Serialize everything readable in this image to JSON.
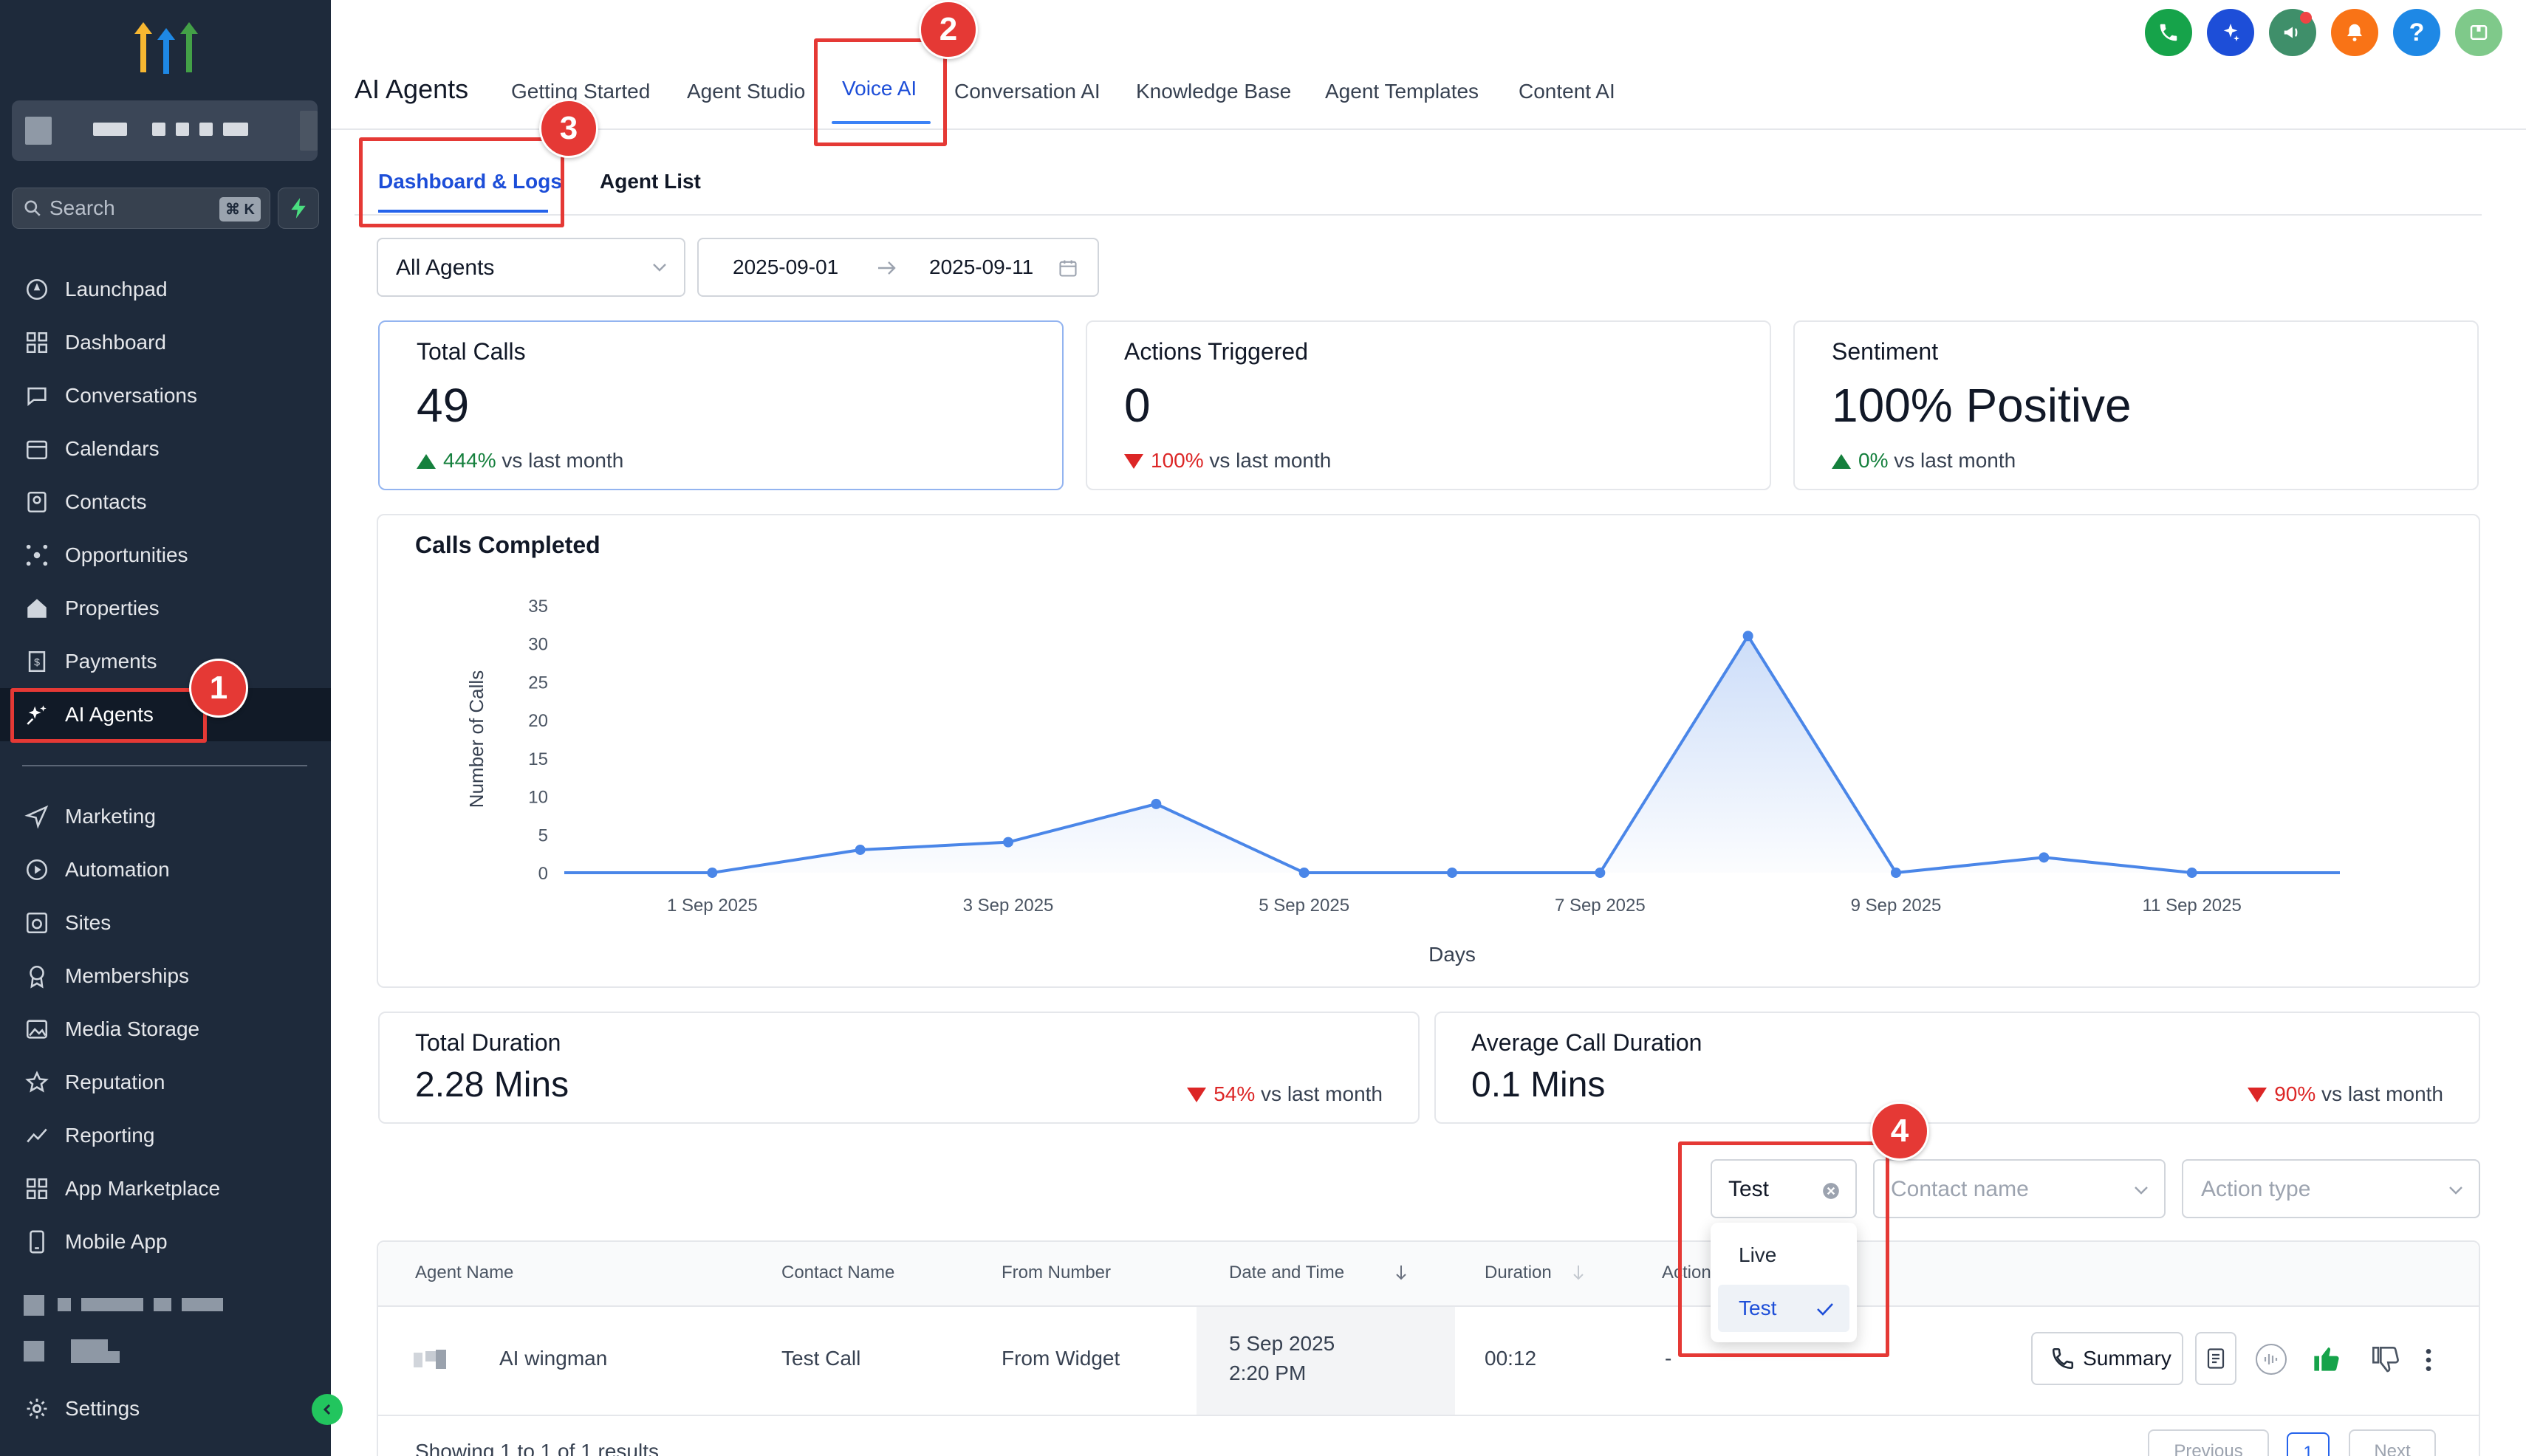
{
  "sidebar": {
    "search_placeholder": "Search",
    "search_shortcut": "⌘ K",
    "items_top": [
      {
        "label": "Launchpad",
        "icon": "rocket-icon"
      },
      {
        "label": "Dashboard",
        "icon": "grid-icon"
      },
      {
        "label": "Conversations",
        "icon": "chat-icon"
      },
      {
        "label": "Calendars",
        "icon": "calendar-icon"
      },
      {
        "label": "Contacts",
        "icon": "contacts-icon"
      },
      {
        "label": "Opportunities",
        "icon": "opportunities-icon"
      },
      {
        "label": "Properties",
        "icon": "home-icon"
      },
      {
        "label": "Payments",
        "icon": "receipt-icon"
      },
      {
        "label": "AI Agents",
        "icon": "sparkle-icon"
      }
    ],
    "items_bottom": [
      {
        "label": "Marketing",
        "icon": "send-icon"
      },
      {
        "label": "Automation",
        "icon": "automation-icon"
      },
      {
        "label": "Sites",
        "icon": "sites-icon"
      },
      {
        "label": "Memberships",
        "icon": "award-icon"
      },
      {
        "label": "Media Storage",
        "icon": "image-icon"
      },
      {
        "label": "Reputation",
        "icon": "star-icon"
      },
      {
        "label": "Reporting",
        "icon": "trend-icon"
      },
      {
        "label": "App Marketplace",
        "icon": "apps-icon"
      },
      {
        "label": "Mobile App",
        "icon": "phone-icon"
      }
    ],
    "settings_label": "Settings"
  },
  "header": {
    "title": "AI Agents",
    "tabs": [
      "Getting Started",
      "Agent Studio",
      "Voice AI",
      "Conversation AI",
      "Knowledge Base",
      "Agent Templates",
      "Content AI"
    ],
    "active_tab": "Voice AI"
  },
  "subtabs": [
    "Dashboard & Logs",
    "Agent List"
  ],
  "filters": {
    "agent_select": "All Agents",
    "date_start": "2025-09-01",
    "date_end": "2025-09-11"
  },
  "stats": [
    {
      "title": "Total Calls",
      "value": "49",
      "delta": "444%",
      "delta_text": "vs last month",
      "direction": "up"
    },
    {
      "title": "Actions Triggered",
      "value": "0",
      "delta": "100%",
      "delta_text": "vs last month",
      "direction": "down"
    },
    {
      "title": "Sentiment",
      "value": "100% Positive",
      "delta": "0%",
      "delta_text": "vs last month",
      "direction": "up"
    }
  ],
  "chart_data": {
    "type": "area",
    "title": "Calls Completed",
    "xlabel": "Days",
    "ylabel": "Number of Calls",
    "ylim": [
      0,
      35
    ],
    "yticks": [
      0,
      5,
      10,
      15,
      20,
      25,
      30,
      35
    ],
    "xtick_labels": [
      "1 Sep 2025",
      "3 Sep 2025",
      "5 Sep 2025",
      "7 Sep 2025",
      "9 Sep 2025",
      "11 Sep 2025"
    ],
    "x": [
      "31 Aug",
      "1 Sep",
      "2 Sep",
      "3 Sep",
      "4 Sep",
      "5 Sep",
      "6 Sep",
      "7 Sep",
      "8 Sep",
      "9 Sep",
      "10 Sep",
      "11 Sep",
      "12 Sep"
    ],
    "values": [
      0,
      0,
      3,
      4,
      9,
      0,
      0,
      0,
      31,
      0,
      2,
      0,
      0
    ],
    "color": "#4a86e8"
  },
  "duration_cards": [
    {
      "title": "Total Duration",
      "value": "2.28 Mins",
      "delta": "54%",
      "delta_text": "vs last month",
      "direction": "down"
    },
    {
      "title": "Average Call Duration",
      "value": "0.1 Mins",
      "delta": "90%",
      "delta_text": "vs last month",
      "direction": "down"
    }
  ],
  "log_filters": {
    "type_value": "Test",
    "contact_placeholder": "Contact name",
    "action_placeholder": "Action type",
    "dropdown_options": [
      "Live",
      "Test"
    ],
    "selected_option": "Test"
  },
  "table": {
    "columns": [
      "Agent Name",
      "Contact Name",
      "From Number",
      "Date and Time",
      "Duration",
      "Action"
    ],
    "rows": [
      {
        "agent": "AI wingman",
        "contact": "Test Call",
        "from": "From Widget",
        "date": "5 Sep 2025",
        "time": "2:20 PM",
        "duration": "00:12",
        "action": "-"
      }
    ],
    "summary_label": "Summary",
    "footer_text": "Showing 1 to 1 of 1 results",
    "pagination": {
      "previous": "Previous",
      "page": "1",
      "next": "Next"
    }
  },
  "annotations": [
    "1",
    "2",
    "3",
    "4"
  ]
}
